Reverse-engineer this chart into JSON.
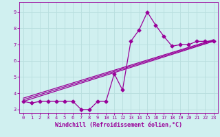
{
  "bg_color": "#d0f0f0",
  "grid_color": "#b8dede",
  "line_color": "#990099",
  "xlim": [
    -0.5,
    23.5
  ],
  "ylim": [
    2.8,
    9.6
  ],
  "xlabel": "Windchill (Refroidissement éolien,°C)",
  "yticks": [
    3,
    4,
    5,
    6,
    7,
    8,
    9
  ],
  "xticks": [
    0,
    1,
    2,
    3,
    4,
    5,
    6,
    7,
    8,
    9,
    10,
    11,
    12,
    13,
    14,
    15,
    16,
    17,
    18,
    19,
    20,
    21,
    22,
    23
  ],
  "line1_x": [
    0,
    1,
    2,
    3,
    4,
    5,
    6,
    7,
    8,
    9,
    10,
    11,
    12,
    13,
    14,
    15,
    16,
    17,
    18,
    19,
    20,
    21,
    22,
    23
  ],
  "line1_y": [
    3.5,
    3.4,
    3.5,
    3.5,
    3.5,
    3.5,
    3.5,
    3.0,
    3.0,
    3.5,
    3.5,
    5.2,
    4.2,
    7.2,
    7.9,
    9.0,
    8.2,
    7.5,
    6.9,
    7.0,
    7.0,
    7.2,
    7.2,
    7.2
  ],
  "line2_x": [
    0,
    23
  ],
  "line2_y": [
    3.5,
    7.2
  ],
  "line3_x": [
    0,
    23
  ],
  "line3_y": [
    3.6,
    7.25
  ],
  "line4_x": [
    0,
    23
  ],
  "line4_y": [
    3.7,
    7.3
  ],
  "marker_size": 2.5,
  "linewidth": 0.9,
  "tick_fontsize": 5,
  "xlabel_fontsize": 6,
  "ylabel_fontsize": 6.5
}
